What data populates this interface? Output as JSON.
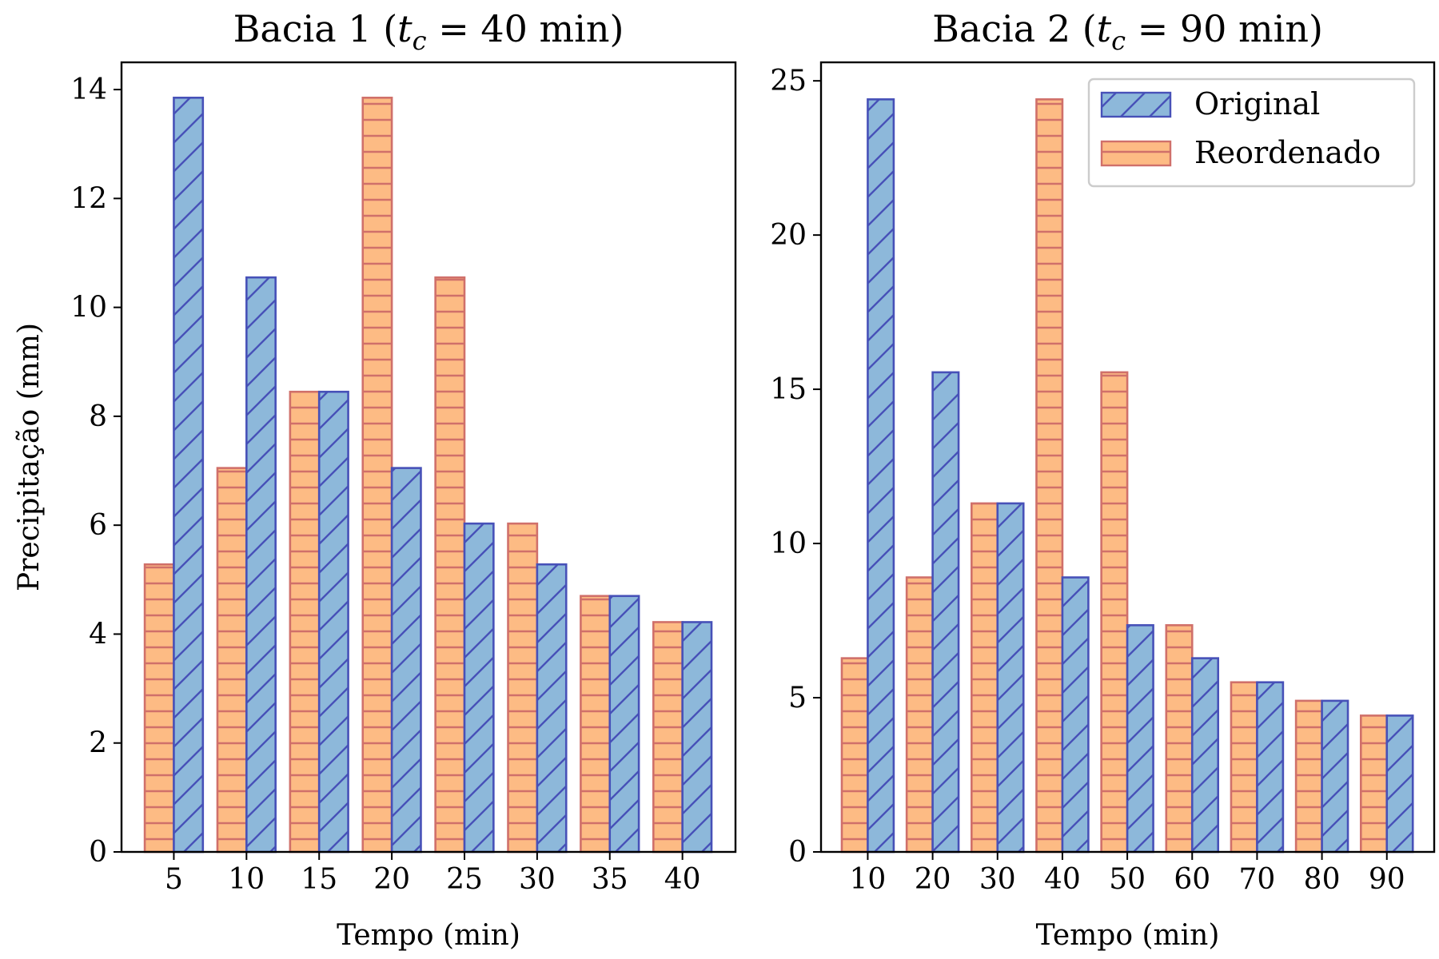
{
  "colors": {
    "original_fill": "#8db8da",
    "original_edge": "#4751b8",
    "reordenado_fill": "#fdbb84",
    "reordenado_edge": "#d0706a",
    "axis": "#000000"
  },
  "legend": {
    "placement": "top-right of second chart",
    "items": [
      "Original",
      "Reordenado"
    ]
  },
  "chart_data": [
    {
      "type": "bar",
      "title": "Bacia 1 (t_c = 40 min)",
      "title_main": "Bacia 1 (",
      "title_var": "t",
      "title_sub": "c",
      "title_rest": " = 40 min)",
      "xlabel": "Tempo (min)",
      "ylabel": "Precipitação (mm)",
      "categories": [
        "5",
        "10",
        "15",
        "20",
        "25",
        "30",
        "35",
        "40"
      ],
      "ylim": [
        0,
        14.5
      ],
      "yticks": [
        0,
        2,
        4,
        6,
        8,
        10,
        12,
        14
      ],
      "grid": false,
      "series": [
        {
          "name": "Original",
          "values": [
            13.85,
            10.55,
            8.45,
            7.05,
            6.03,
            5.28,
            4.7,
            4.22
          ]
        },
        {
          "name": "Reordenado",
          "values": [
            5.28,
            7.05,
            8.45,
            13.85,
            10.55,
            6.03,
            4.7,
            4.22
          ]
        }
      ]
    },
    {
      "type": "bar",
      "title": "Bacia 2 (t_c = 90 min)",
      "title_main": "Bacia 2 (",
      "title_var": "t",
      "title_sub": "c",
      "title_rest": " = 90 min)",
      "xlabel": "Tempo (min)",
      "ylabel": "",
      "categories": [
        "10",
        "20",
        "30",
        "40",
        "50",
        "60",
        "70",
        "80",
        "90"
      ],
      "ylim": [
        0,
        25.6
      ],
      "yticks": [
        0,
        5,
        10,
        15,
        20,
        25
      ],
      "grid": false,
      "series": [
        {
          "name": "Original",
          "values": [
            24.4,
            15.55,
            11.3,
            8.9,
            7.35,
            6.28,
            5.5,
            4.9,
            4.42
          ]
        },
        {
          "name": "Reordenado",
          "values": [
            6.28,
            8.9,
            11.3,
            24.4,
            15.55,
            7.35,
            5.5,
            4.9,
            4.42
          ]
        }
      ]
    }
  ]
}
